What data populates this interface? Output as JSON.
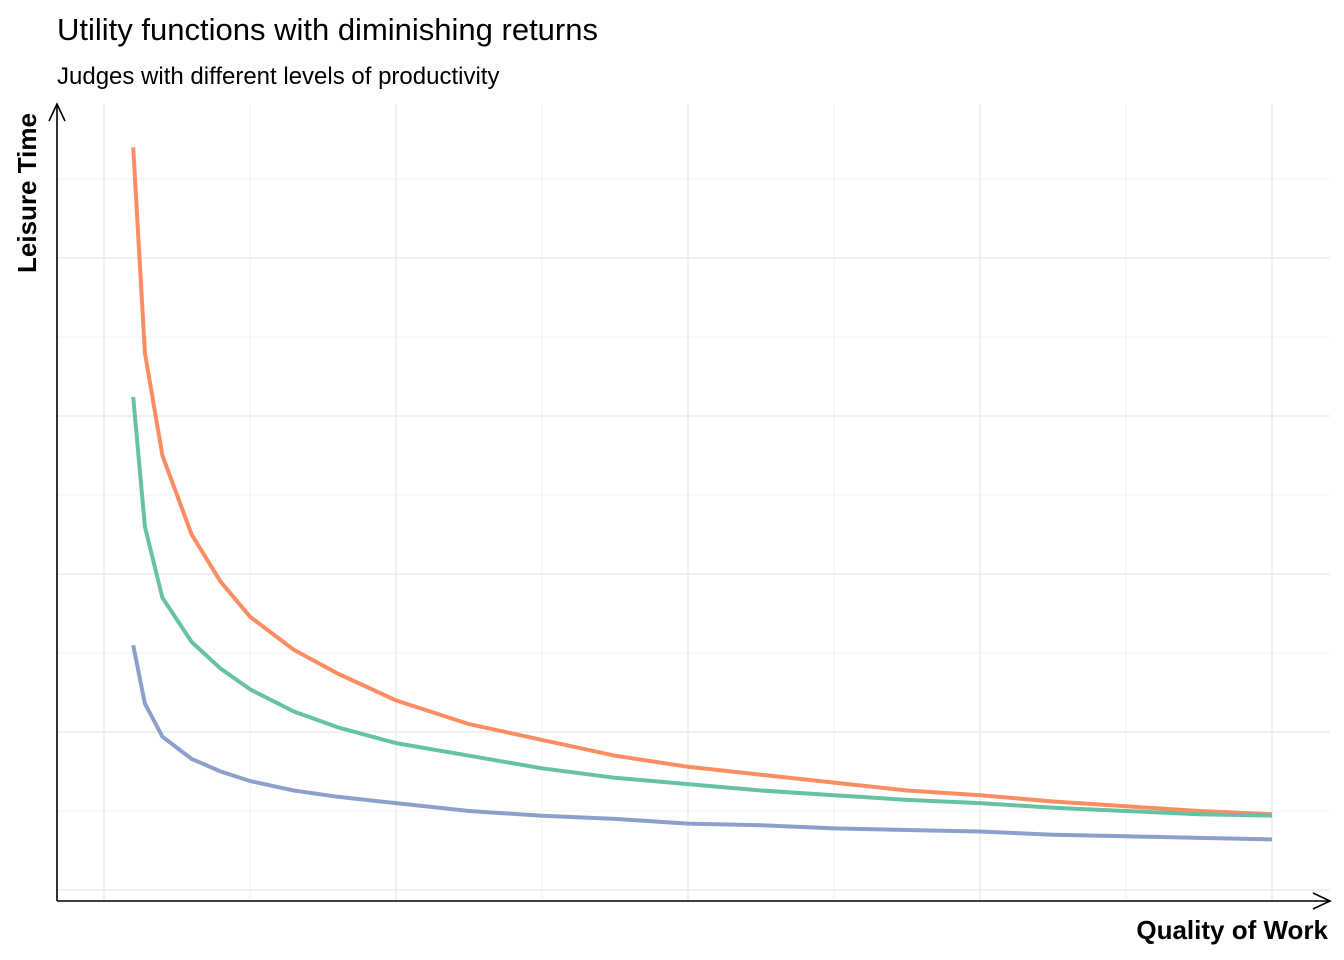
{
  "chart_data": {
    "type": "line",
    "title": "Utility functions with diminishing returns",
    "subtitle": "Judges with different levels of productivity",
    "xlabel": "Quality of Work",
    "ylabel": "Leisure Time",
    "xlim": [
      0,
      4.35
    ],
    "ylim": [
      0,
      5
    ],
    "grid": true,
    "legend": "none",
    "series": [
      {
        "color": "#FC8D62",
        "points": [
          [
            0.1,
            4.7
          ],
          [
            0.14,
            3.4
          ],
          [
            0.2,
            2.75
          ],
          [
            0.3,
            2.25
          ],
          [
            0.4,
            1.95
          ],
          [
            0.5,
            1.73
          ],
          [
            0.65,
            1.52
          ],
          [
            0.8,
            1.37
          ],
          [
            1,
            1.2
          ],
          [
            1.25,
            1.05
          ],
          [
            1.5,
            0.95
          ],
          [
            1.75,
            0.85
          ],
          [
            2,
            0.78
          ],
          [
            2.25,
            0.73
          ],
          [
            2.5,
            0.68
          ],
          [
            2.75,
            0.63
          ],
          [
            3,
            0.6
          ],
          [
            3.25,
            0.56
          ],
          [
            3.5,
            0.53
          ],
          [
            3.75,
            0.5
          ],
          [
            4,
            0.48
          ]
        ]
      },
      {
        "color": "#66C2A5",
        "points": [
          [
            0.1,
            3.12
          ],
          [
            0.14,
            2.3
          ],
          [
            0.2,
            1.85
          ],
          [
            0.3,
            1.57
          ],
          [
            0.4,
            1.4
          ],
          [
            0.5,
            1.27
          ],
          [
            0.65,
            1.13
          ],
          [
            0.8,
            1.03
          ],
          [
            1,
            0.93
          ],
          [
            1.25,
            0.85
          ],
          [
            1.5,
            0.77
          ],
          [
            1.75,
            0.71
          ],
          [
            2,
            0.67
          ],
          [
            2.25,
            0.63
          ],
          [
            2.5,
            0.6
          ],
          [
            2.75,
            0.57
          ],
          [
            3,
            0.55
          ],
          [
            3.25,
            0.52
          ],
          [
            3.5,
            0.5
          ],
          [
            3.75,
            0.48
          ],
          [
            4,
            0.47
          ]
        ]
      },
      {
        "color": "#8DA0CB",
        "points": [
          [
            0.1,
            1.55
          ],
          [
            0.14,
            1.18
          ],
          [
            0.2,
            0.97
          ],
          [
            0.3,
            0.83
          ],
          [
            0.4,
            0.75
          ],
          [
            0.5,
            0.69
          ],
          [
            0.65,
            0.63
          ],
          [
            0.8,
            0.59
          ],
          [
            1,
            0.55
          ],
          [
            1.25,
            0.5
          ],
          [
            1.5,
            0.47
          ],
          [
            1.75,
            0.45
          ],
          [
            2,
            0.42
          ],
          [
            2.25,
            0.41
          ],
          [
            2.5,
            0.39
          ],
          [
            2.75,
            0.38
          ],
          [
            3,
            0.37
          ],
          [
            3.25,
            0.35
          ],
          [
            3.5,
            0.34
          ],
          [
            3.75,
            0.33
          ],
          [
            4,
            0.32
          ]
        ]
      }
    ]
  }
}
